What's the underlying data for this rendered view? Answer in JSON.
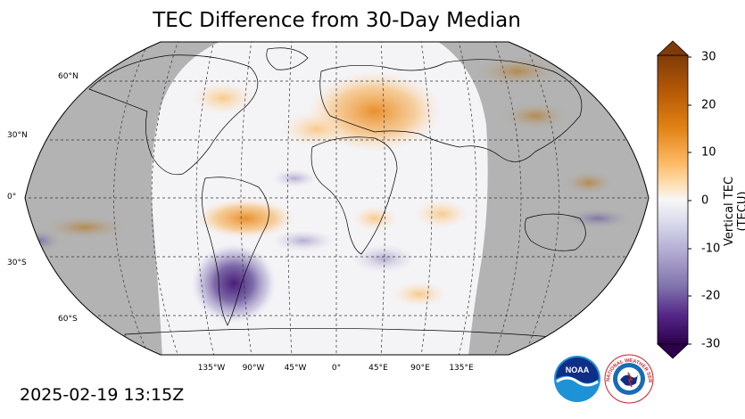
{
  "title": "TEC Difference from 30-Day Median",
  "timestamp": "2025-02-19 13:15Z",
  "map": {
    "projection": "robinson",
    "latitude_labels": [
      "60°N",
      "30°N",
      "0°",
      "30°S",
      "60°S"
    ],
    "longitude_labels": [
      "135°W",
      "90°W",
      "45°W",
      "0°",
      "45°E",
      "90°E",
      "135°E"
    ],
    "night_shading_color": "#b3b3b3",
    "anomaly_regions": [
      {
        "region": "Europe",
        "sign": "positive"
      },
      {
        "region": "Northern Africa",
        "sign": "positive"
      },
      {
        "region": "Northern South America",
        "sign": "positive"
      },
      {
        "region": "Southern South America",
        "sign": "negative"
      },
      {
        "region": "Australia",
        "sign": "negative"
      }
    ]
  },
  "colorbar": {
    "label": "Vertical TEC (TECU)",
    "ticks": [
      "30",
      "20",
      "10",
      "0",
      "-10",
      "-20",
      "-30"
    ],
    "min": -30,
    "max": 30,
    "colors_top_to_bottom": [
      "#7f3b08",
      "#b35806",
      "#e08214",
      "#fdb863",
      "#fee0b6",
      "#f7f7f7",
      "#d8daeb",
      "#b2abd2",
      "#8073ac",
      "#542788",
      "#2d004b"
    ]
  },
  "logos": {
    "noaa_text": "NOAA",
    "nws_text": "NATIONAL WEATHER SERVICE"
  }
}
